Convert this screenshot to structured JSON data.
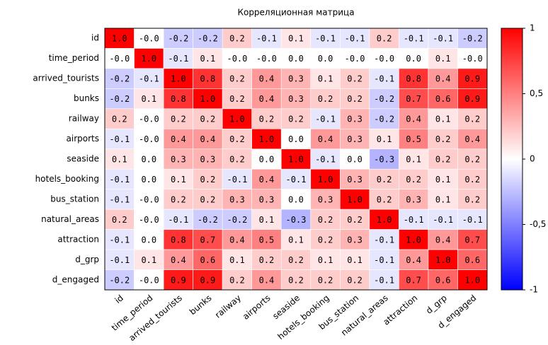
{
  "chart_data": {
    "type": "heatmap",
    "title": "Корреляционная матрица",
    "categories": [
      "id",
      "time_period",
      "arrived_tourists",
      "bunks",
      "railway",
      "airports",
      "seaside",
      "hotels_booking",
      "bus_station",
      "natural_areas",
      "attraction",
      "d_grp",
      "d_engaged"
    ],
    "values": [
      [
        1.0,
        0,
        -0.2,
        -0.2,
        0.2,
        -0.1,
        0.1,
        -0.1,
        -0.1,
        0.2,
        -0.1,
        -0.1,
        -0.2
      ],
      [
        0,
        1.0,
        -0.1,
        0.1,
        0,
        0,
        0.0,
        0.0,
        0,
        0,
        0.0,
        0.1,
        0
      ],
      [
        -0.2,
        -0.1,
        1.0,
        0.8,
        0.2,
        0.4,
        0.3,
        0.1,
        0.2,
        -0.1,
        0.8,
        0.4,
        0.9
      ],
      [
        -0.2,
        0.1,
        0.8,
        1.0,
        0.2,
        0.4,
        0.3,
        0.2,
        0.2,
        -0.2,
        0.7,
        0.6,
        0.9
      ],
      [
        0.2,
        0,
        0.2,
        0.2,
        1.0,
        0.2,
        0.2,
        -0.1,
        0.3,
        -0.2,
        0.4,
        0.1,
        0.2
      ],
      [
        -0.1,
        0,
        0.4,
        0.4,
        0.2,
        1.0,
        0.0,
        0.4,
        0.3,
        0.1,
        0.5,
        0.2,
        0.4
      ],
      [
        0.1,
        0.0,
        0.3,
        0.3,
        0.2,
        0.0,
        1.0,
        -0.1,
        0.0,
        -0.3,
        0.1,
        0.2,
        0.2
      ],
      [
        -0.1,
        0.0,
        0.1,
        0.2,
        -0.1,
        0.4,
        -0.1,
        1.0,
        0.3,
        0.2,
        0.2,
        0.1,
        0.2
      ],
      [
        -0.1,
        0,
        0.2,
        0.2,
        0.3,
        0.3,
        0.0,
        0.3,
        1.0,
        0.2,
        0.3,
        0.1,
        0.2
      ],
      [
        0.2,
        0,
        -0.1,
        -0.2,
        -0.2,
        0.1,
        -0.3,
        0.2,
        0.2,
        1.0,
        -0.1,
        -0.1,
        -0.1
      ],
      [
        -0.1,
        0.0,
        0.8,
        0.7,
        0.4,
        0.5,
        0.1,
        0.2,
        0.3,
        -0.1,
        1.0,
        0.4,
        0.7
      ],
      [
        -0.1,
        0.1,
        0.4,
        0.6,
        0.1,
        0.2,
        0.2,
        0.1,
        0.1,
        -0.1,
        0.4,
        1.0,
        0.6
      ],
      [
        -0.2,
        0,
        0.9,
        0.9,
        0.2,
        0.4,
        0.2,
        0.2,
        0.2,
        -0.1,
        0.7,
        0.6,
        1.0
      ]
    ],
    "value_labels": [
      [
        "1.0",
        "-0.0",
        "-0.2",
        "-0.2",
        "0.2",
        "-0.1",
        "0.1",
        "-0.1",
        "-0.1",
        "0.2",
        "-0.1",
        "-0.1",
        "-0.2"
      ],
      [
        "-0.0",
        "1.0",
        "-0.1",
        "0.1",
        "-0.0",
        "-0.0",
        "0.0",
        "0.0",
        "-0.0",
        "-0.0",
        "0.0",
        "0.1",
        "-0.0"
      ],
      [
        "-0.2",
        "-0.1",
        "1.0",
        "0.8",
        "0.2",
        "0.4",
        "0.3",
        "0.1",
        "0.2",
        "-0.1",
        "0.8",
        "0.4",
        "0.9"
      ],
      [
        "-0.2",
        "0.1",
        "0.8",
        "1.0",
        "0.2",
        "0.4",
        "0.3",
        "0.2",
        "0.2",
        "-0.2",
        "0.7",
        "0.6",
        "0.9"
      ],
      [
        "0.2",
        "-0.0",
        "0.2",
        "0.2",
        "1.0",
        "0.2",
        "0.2",
        "-0.1",
        "0.3",
        "-0.2",
        "0.4",
        "0.1",
        "0.2"
      ],
      [
        "-0.1",
        "-0.0",
        "0.4",
        "0.4",
        "0.2",
        "1.0",
        "0.0",
        "0.4",
        "0.3",
        "0.1",
        "0.5",
        "0.2",
        "0.4"
      ],
      [
        "0.1",
        "0.0",
        "0.3",
        "0.3",
        "0.2",
        "0.0",
        "1.0",
        "-0.1",
        "0.0",
        "-0.3",
        "0.1",
        "0.2",
        "0.2"
      ],
      [
        "-0.1",
        "0.0",
        "0.1",
        "0.2",
        "-0.1",
        "0.4",
        "-0.1",
        "1.0",
        "0.3",
        "0.2",
        "0.2",
        "0.1",
        "0.2"
      ],
      [
        "-0.1",
        "-0.0",
        "0.2",
        "0.2",
        "0.3",
        "0.3",
        "0.0",
        "0.3",
        "1.0",
        "0.2",
        "0.3",
        "0.1",
        "0.2"
      ],
      [
        "0.2",
        "-0.0",
        "-0.1",
        "-0.2",
        "-0.2",
        "0.1",
        "-0.3",
        "0.2",
        "0.2",
        "1.0",
        "-0.1",
        "-0.1",
        "-0.1"
      ],
      [
        "-0.1",
        "0.0",
        "0.8",
        "0.7",
        "0.4",
        "0.5",
        "0.1",
        "0.2",
        "0.3",
        "-0.1",
        "1.0",
        "0.4",
        "0.7"
      ],
      [
        "-0.1",
        "0.1",
        "0.4",
        "0.6",
        "0.1",
        "0.2",
        "0.2",
        "0.1",
        "0.1",
        "-0.1",
        "0.4",
        "1.0",
        "0.6"
      ],
      [
        "-0.2",
        "-0.0",
        "0.9",
        "0.9",
        "0.2",
        "0.4",
        "0.2",
        "0.2",
        "0.2",
        "-0.1",
        "0.7",
        "0.6",
        "1.0"
      ]
    ],
    "colormap": "bwr",
    "zlim": [
      -1,
      1
    ],
    "zticks": [
      1,
      {
        "value": 0.5,
        "label": "0,5"
      },
      0,
      {
        "value": -0.5,
        "label": "-0,5"
      },
      -1
    ]
  }
}
